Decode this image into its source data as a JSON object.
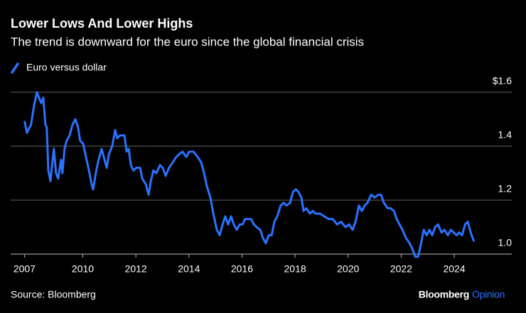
{
  "chart_data": {
    "type": "line",
    "title": "Lower Lows And Lower Highs",
    "subtitle": "The trend is downward for the euro since the global financial crisis",
    "source": "Source: Bloomberg",
    "brand": "Bloomberg",
    "brand_suffix": "Opinion",
    "x": [
      2007.81,
      2007.89,
      2008.05,
      2008.16,
      2008.27,
      2008.35,
      2008.43,
      2008.51,
      2008.59,
      2008.64,
      2008.7,
      2008.78,
      2008.83,
      2008.91,
      2008.99,
      2009.07,
      2009.18,
      2009.23,
      2009.31,
      2009.39,
      2009.5,
      2009.61,
      2009.72,
      2009.82,
      2009.9,
      2010.01,
      2010.12,
      2010.23,
      2010.33,
      2010.39,
      2010.47,
      2010.57,
      2010.71,
      2010.79,
      2010.9,
      2010.98,
      2011.11,
      2011.22,
      2011.3,
      2011.4,
      2011.57,
      2011.65,
      2011.73,
      2011.81,
      2011.91,
      2012.02,
      2012.16,
      2012.24,
      2012.37,
      2012.48,
      2012.56,
      2012.66,
      2012.77,
      2012.91,
      2013.01,
      2013.12,
      2013.25,
      2013.39,
      2013.52,
      2013.63,
      2013.76,
      2013.9,
      2014.01,
      2014.17,
      2014.33,
      2014.46,
      2014.57,
      2014.68,
      2014.81,
      2014.92,
      2015.05,
      2015.16,
      2015.27,
      2015.37,
      2015.48,
      2015.59,
      2015.69,
      2015.8,
      2015.91,
      2016.02,
      2016.12,
      2016.23,
      2016.34,
      2016.45,
      2016.55,
      2016.69,
      2016.79,
      2016.9,
      2017.01,
      2017.12,
      2017.22,
      2017.33,
      2017.46,
      2017.57,
      2017.68,
      2017.81,
      2017.92,
      2018.03,
      2018.13,
      2018.24,
      2018.32,
      2018.43,
      2018.56,
      2018.67,
      2018.78,
      2018.94,
      2019.1,
      2019.26,
      2019.42,
      2019.58,
      2019.74,
      2019.9,
      2020.04,
      2020.17,
      2020.28,
      2020.41,
      2020.52,
      2020.63,
      2020.73,
      2020.87,
      2021.0,
      2021.14,
      2021.24,
      2021.35,
      2021.49,
      2021.59,
      2021.73,
      2021.83,
      2021.94,
      2022.05,
      2022.18,
      2022.32,
      2022.42,
      2022.53,
      2022.64,
      2022.75,
      2022.85,
      2022.96,
      2023.07,
      2023.17,
      2023.28,
      2023.39,
      2023.52,
      2023.63,
      2023.76,
      2023.87,
      2023.98,
      2024.09,
      2024.19,
      2024.3,
      2024.41,
      2024.51,
      2024.62,
      2024.73
    ],
    "series": [
      {
        "name": "Euro versus dollar",
        "color": "#2b72ff",
        "values": [
          1.49,
          1.45,
          1.48,
          1.55,
          1.6,
          1.58,
          1.56,
          1.58,
          1.48,
          1.47,
          1.31,
          1.27,
          1.32,
          1.39,
          1.3,
          1.28,
          1.35,
          1.3,
          1.39,
          1.42,
          1.44,
          1.48,
          1.5,
          1.47,
          1.42,
          1.41,
          1.36,
          1.31,
          1.26,
          1.24,
          1.29,
          1.34,
          1.39,
          1.36,
          1.32,
          1.37,
          1.4,
          1.46,
          1.43,
          1.44,
          1.44,
          1.38,
          1.39,
          1.33,
          1.31,
          1.32,
          1.32,
          1.28,
          1.26,
          1.22,
          1.27,
          1.31,
          1.3,
          1.33,
          1.32,
          1.29,
          1.32,
          1.34,
          1.36,
          1.37,
          1.38,
          1.36,
          1.38,
          1.38,
          1.36,
          1.34,
          1.3,
          1.25,
          1.21,
          1.15,
          1.09,
          1.07,
          1.11,
          1.14,
          1.11,
          1.14,
          1.11,
          1.09,
          1.11,
          1.11,
          1.13,
          1.13,
          1.13,
          1.11,
          1.1,
          1.09,
          1.06,
          1.04,
          1.07,
          1.07,
          1.12,
          1.14,
          1.18,
          1.19,
          1.18,
          1.19,
          1.23,
          1.24,
          1.23,
          1.21,
          1.16,
          1.17,
          1.15,
          1.16,
          1.15,
          1.15,
          1.14,
          1.13,
          1.13,
          1.11,
          1.12,
          1.1,
          1.11,
          1.09,
          1.12,
          1.18,
          1.16,
          1.18,
          1.19,
          1.22,
          1.21,
          1.22,
          1.22,
          1.19,
          1.17,
          1.17,
          1.16,
          1.13,
          1.11,
          1.09,
          1.06,
          1.04,
          1.02,
          0.99,
          0.99,
          1.04,
          1.09,
          1.07,
          1.09,
          1.07,
          1.1,
          1.11,
          1.08,
          1.09,
          1.07,
          1.09,
          1.08,
          1.07,
          1.08,
          1.07,
          1.11,
          1.12,
          1.08,
          1.05
        ]
      }
    ],
    "xlim": [
      2007.28,
      2025.5
    ],
    "ylim": [
      0.95,
      1.65
    ],
    "xticks": [
      {
        "value": 2007.8,
        "label": "2007"
      },
      2010,
      2012,
      2014,
      2016,
      2018,
      2020,
      2022,
      2024
    ],
    "yticks": [
      {
        "value": 1.0,
        "label": "1.0"
      },
      1.2,
      1.4,
      {
        "value": 1.6,
        "label": "$1.6"
      }
    ],
    "grid": true
  }
}
